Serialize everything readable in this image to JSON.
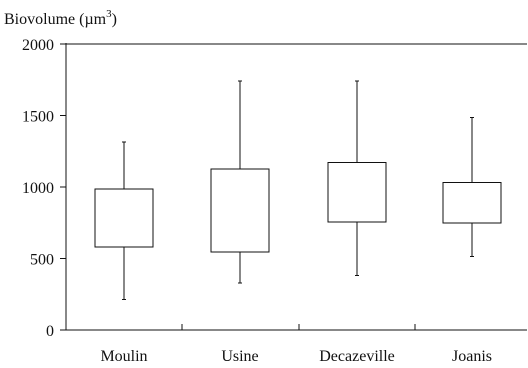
{
  "chart_data": {
    "type": "boxplot",
    "ylabel": "Biovolume (µm",
    "ylabel_sup": "3",
    "ylabel_close": ")",
    "ylim": [
      0,
      2000
    ],
    "yticks": [
      "0",
      "500",
      "1000",
      "1500",
      "2000"
    ],
    "ytick_values": [
      0,
      500,
      1000,
      1500,
      2000
    ],
    "top_reference_line": 2000,
    "categories": [
      "Moulin",
      "Usine",
      "Decazeville",
      "Joanis"
    ],
    "boxes": [
      {
        "category": "Moulin",
        "min": 215,
        "q1": 580,
        "q3": 985,
        "max": 1315
      },
      {
        "category": "Usine",
        "min": 330,
        "q1": 545,
        "q3": 1125,
        "max": 1740
      },
      {
        "category": "Decazeville",
        "min": 380,
        "q1": 755,
        "q3": 1170,
        "max": 1740
      },
      {
        "category": "Joanis",
        "min": 515,
        "q1": 750,
        "q3": 1030,
        "max": 1485
      }
    ]
  }
}
